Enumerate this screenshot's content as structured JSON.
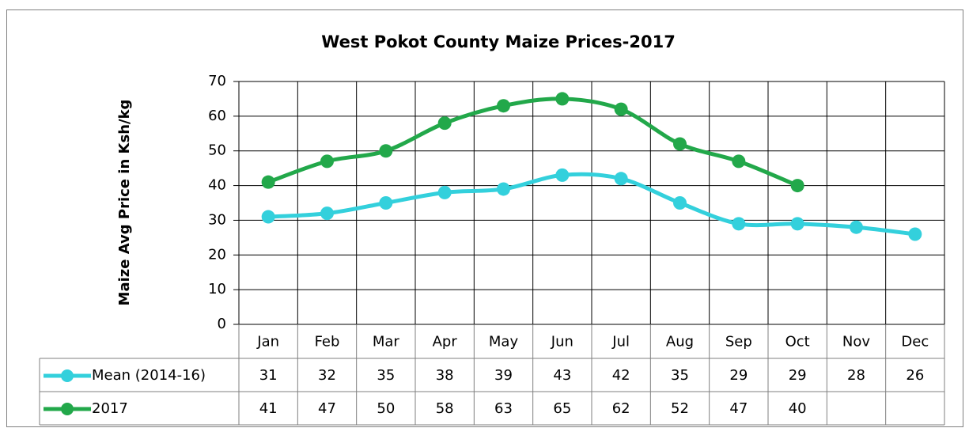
{
  "chart_data": {
    "type": "line",
    "title": "West Pokot County Maize Prices-2017",
    "y_label": "Maize Avg Price in Ksh/kg",
    "categories": [
      "Jan",
      "Feb",
      "Mar",
      "Apr",
      "May",
      "Jun",
      "Jul",
      "Aug",
      "Sep",
      "Oct",
      "Nov",
      "Dec"
    ],
    "series": [
      {
        "name": "Mean (2014-16)",
        "color": "#33d0dc",
        "values": [
          31,
          32,
          35,
          38,
          39,
          43,
          42,
          35,
          29,
          29,
          28,
          26
        ]
      },
      {
        "name": "2017",
        "color": "#22a84a",
        "values": [
          41,
          47,
          50,
          58,
          63,
          65,
          62,
          52,
          47,
          40,
          null,
          null
        ]
      }
    ],
    "ylim": [
      0,
      70
    ],
    "yticks": [
      0,
      10,
      20,
      30,
      40,
      50,
      60,
      70
    ],
    "grid": true,
    "smooth": true,
    "data_table": true
  }
}
